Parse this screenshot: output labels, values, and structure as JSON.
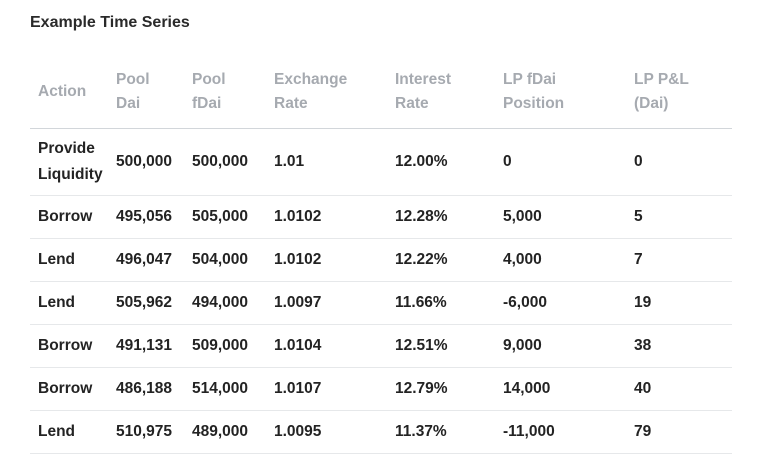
{
  "title": "Example Time Series",
  "columns": [
    [
      "Action"
    ],
    [
      "Pool Dai"
    ],
    [
      "Pool",
      "fDai"
    ],
    [
      "Exchange",
      "Rate"
    ],
    [
      "Interest",
      "Rate"
    ],
    [
      "LP fDai",
      "Position"
    ],
    [
      "LP P&L",
      "(Dai)"
    ]
  ],
  "rows": [
    [
      [
        "Provide",
        "Liquidity"
      ],
      "500,000",
      "500,000",
      "1.01",
      "12.00%",
      "0",
      "0"
    ],
    [
      "Borrow",
      "495,056",
      "505,000",
      "1.0102",
      "12.28%",
      "5,000",
      "5"
    ],
    [
      "Lend",
      "496,047",
      "504,000",
      "1.0102",
      "12.22%",
      "4,000",
      "7"
    ],
    [
      "Lend",
      "505,962",
      "494,000",
      "1.0097",
      "11.66%",
      "-6,000",
      "19"
    ],
    [
      "Borrow",
      "491,131",
      "509,000",
      "1.0104",
      "12.51%",
      "9,000",
      "38"
    ],
    [
      "Borrow",
      "486,188",
      "514,000",
      "1.0107",
      "12.79%",
      "14,000",
      "40"
    ],
    [
      "Lend",
      "510,975",
      "489,000",
      "1.0095",
      "11.37%",
      "-11,000",
      "79"
    ]
  ]
}
